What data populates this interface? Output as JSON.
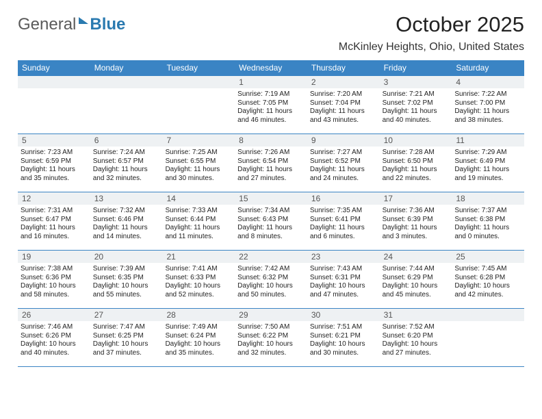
{
  "logo": {
    "text1": "General",
    "text2": "Blue"
  },
  "title": "October 2025",
  "location": "McKinley Heights, Ohio, United States",
  "colors": {
    "headerBar": "#3a84c4",
    "numRowBg": "#eef1f3",
    "text": "#222222",
    "border": "#3a84c4"
  },
  "weekdays": [
    "Sunday",
    "Monday",
    "Tuesday",
    "Wednesday",
    "Thursday",
    "Friday",
    "Saturday"
  ],
  "weeks": [
    [
      {
        "n": ""
      },
      {
        "n": ""
      },
      {
        "n": ""
      },
      {
        "n": "1",
        "sr": "7:19 AM",
        "ss": "7:05 PM",
        "dl": "11 hours",
        "dm": "46 minutes."
      },
      {
        "n": "2",
        "sr": "7:20 AM",
        "ss": "7:04 PM",
        "dl": "11 hours",
        "dm": "43 minutes."
      },
      {
        "n": "3",
        "sr": "7:21 AM",
        "ss": "7:02 PM",
        "dl": "11 hours",
        "dm": "40 minutes."
      },
      {
        "n": "4",
        "sr": "7:22 AM",
        "ss": "7:00 PM",
        "dl": "11 hours",
        "dm": "38 minutes."
      }
    ],
    [
      {
        "n": "5",
        "sr": "7:23 AM",
        "ss": "6:59 PM",
        "dl": "11 hours",
        "dm": "35 minutes."
      },
      {
        "n": "6",
        "sr": "7:24 AM",
        "ss": "6:57 PM",
        "dl": "11 hours",
        "dm": "32 minutes."
      },
      {
        "n": "7",
        "sr": "7:25 AM",
        "ss": "6:55 PM",
        "dl": "11 hours",
        "dm": "30 minutes."
      },
      {
        "n": "8",
        "sr": "7:26 AM",
        "ss": "6:54 PM",
        "dl": "11 hours",
        "dm": "27 minutes."
      },
      {
        "n": "9",
        "sr": "7:27 AM",
        "ss": "6:52 PM",
        "dl": "11 hours",
        "dm": "24 minutes."
      },
      {
        "n": "10",
        "sr": "7:28 AM",
        "ss": "6:50 PM",
        "dl": "11 hours",
        "dm": "22 minutes."
      },
      {
        "n": "11",
        "sr": "7:29 AM",
        "ss": "6:49 PM",
        "dl": "11 hours",
        "dm": "19 minutes."
      }
    ],
    [
      {
        "n": "12",
        "sr": "7:31 AM",
        "ss": "6:47 PM",
        "dl": "11 hours",
        "dm": "16 minutes."
      },
      {
        "n": "13",
        "sr": "7:32 AM",
        "ss": "6:46 PM",
        "dl": "11 hours",
        "dm": "14 minutes."
      },
      {
        "n": "14",
        "sr": "7:33 AM",
        "ss": "6:44 PM",
        "dl": "11 hours",
        "dm": "11 minutes."
      },
      {
        "n": "15",
        "sr": "7:34 AM",
        "ss": "6:43 PM",
        "dl": "11 hours",
        "dm": "8 minutes."
      },
      {
        "n": "16",
        "sr": "7:35 AM",
        "ss": "6:41 PM",
        "dl": "11 hours",
        "dm": "6 minutes."
      },
      {
        "n": "17",
        "sr": "7:36 AM",
        "ss": "6:39 PM",
        "dl": "11 hours",
        "dm": "3 minutes."
      },
      {
        "n": "18",
        "sr": "7:37 AM",
        "ss": "6:38 PM",
        "dl": "11 hours",
        "dm": "0 minutes."
      }
    ],
    [
      {
        "n": "19",
        "sr": "7:38 AM",
        "ss": "6:36 PM",
        "dl": "10 hours",
        "dm": "58 minutes."
      },
      {
        "n": "20",
        "sr": "7:39 AM",
        "ss": "6:35 PM",
        "dl": "10 hours",
        "dm": "55 minutes."
      },
      {
        "n": "21",
        "sr": "7:41 AM",
        "ss": "6:33 PM",
        "dl": "10 hours",
        "dm": "52 minutes."
      },
      {
        "n": "22",
        "sr": "7:42 AM",
        "ss": "6:32 PM",
        "dl": "10 hours",
        "dm": "50 minutes."
      },
      {
        "n": "23",
        "sr": "7:43 AM",
        "ss": "6:31 PM",
        "dl": "10 hours",
        "dm": "47 minutes."
      },
      {
        "n": "24",
        "sr": "7:44 AM",
        "ss": "6:29 PM",
        "dl": "10 hours",
        "dm": "45 minutes."
      },
      {
        "n": "25",
        "sr": "7:45 AM",
        "ss": "6:28 PM",
        "dl": "10 hours",
        "dm": "42 minutes."
      }
    ],
    [
      {
        "n": "26",
        "sr": "7:46 AM",
        "ss": "6:26 PM",
        "dl": "10 hours",
        "dm": "40 minutes."
      },
      {
        "n": "27",
        "sr": "7:47 AM",
        "ss": "6:25 PM",
        "dl": "10 hours",
        "dm": "37 minutes."
      },
      {
        "n": "28",
        "sr": "7:49 AM",
        "ss": "6:24 PM",
        "dl": "10 hours",
        "dm": "35 minutes."
      },
      {
        "n": "29",
        "sr": "7:50 AM",
        "ss": "6:22 PM",
        "dl": "10 hours",
        "dm": "32 minutes."
      },
      {
        "n": "30",
        "sr": "7:51 AM",
        "ss": "6:21 PM",
        "dl": "10 hours",
        "dm": "30 minutes."
      },
      {
        "n": "31",
        "sr": "7:52 AM",
        "ss": "6:20 PM",
        "dl": "10 hours",
        "dm": "27 minutes."
      },
      {
        "n": ""
      }
    ]
  ]
}
